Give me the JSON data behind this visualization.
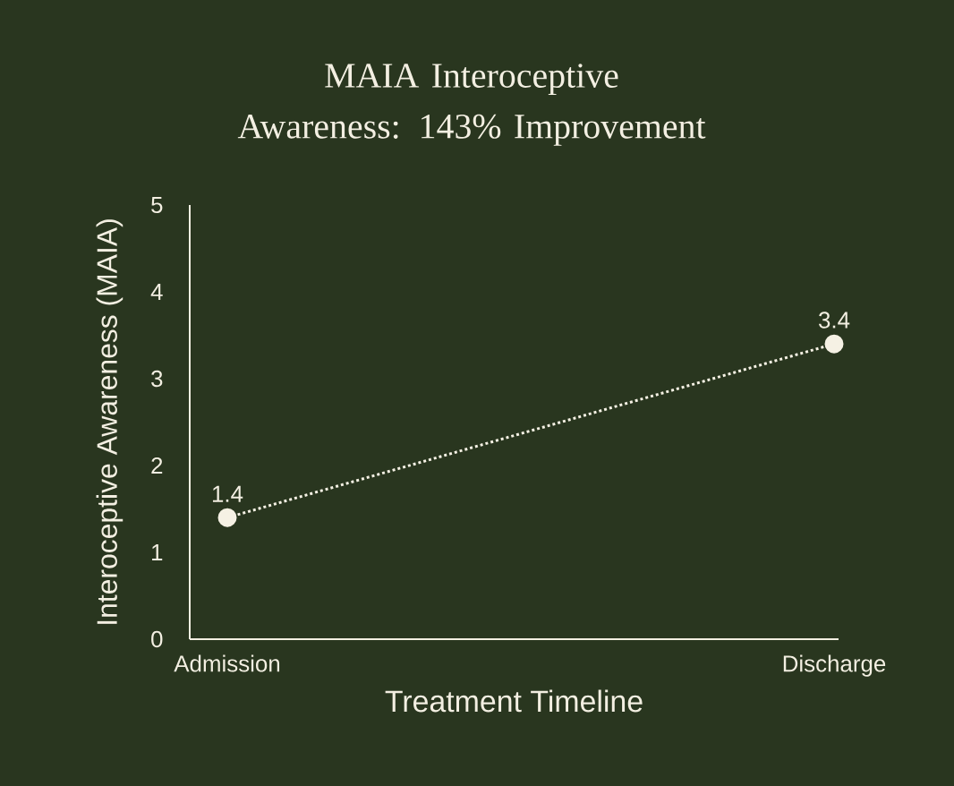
{
  "chart_data": {
    "type": "line",
    "title": "MAIA Interoceptive Awareness: 143% Improvement",
    "xlabel": "Treatment Timeline",
    "ylabel": "Interoceptive Awareness (MAIA)",
    "categories": [
      "Admission",
      "Discharge"
    ],
    "values": [
      1.4,
      3.4
    ],
    "color": "#f5f1e4",
    "marker": "circle",
    "line_style": "dotted",
    "data_labels": true,
    "ylim": [
      0,
      5
    ],
    "yticks": [
      0,
      1,
      2,
      3,
      4,
      5
    ]
  }
}
